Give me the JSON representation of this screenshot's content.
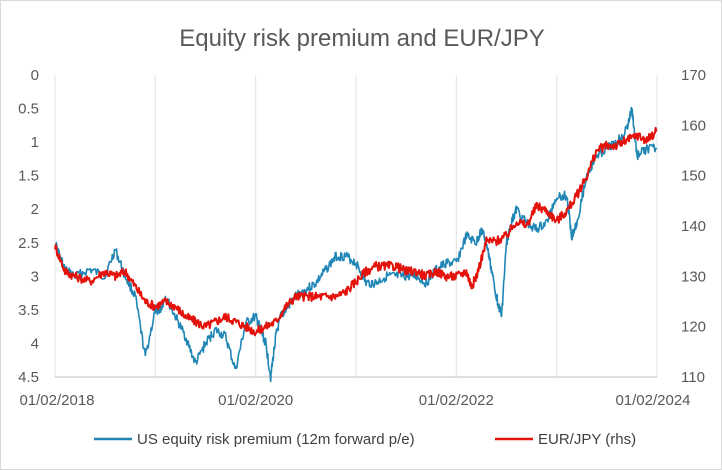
{
  "chart_data": {
    "type": "line",
    "title": "Equity risk premium and EUR/JPY",
    "xlabel": "",
    "ylabel_left": "",
    "ylabel_right": "",
    "x_ticks": [
      "01/02/2018",
      "01/02/2020",
      "01/02/2022",
      "01/02/2024"
    ],
    "y_left": {
      "min": 0,
      "max": 4.5,
      "inverted": true,
      "ticks": [
        "0",
        "0.5",
        "1",
        "1.5",
        "2",
        "2.5",
        "3",
        "3.5",
        "4",
        "4.5"
      ]
    },
    "y_right": {
      "min": 110,
      "max": 170,
      "ticks": [
        "110",
        "120",
        "130",
        "140",
        "150",
        "160",
        "170"
      ]
    },
    "grid": "vertical",
    "legend_position": "bottom",
    "series": [
      {
        "name": "US equity risk premium (12m forward p/e)",
        "axis": "left",
        "color": "#1f86b5",
        "x": [
          2018.0,
          2018.1,
          2018.2,
          2018.35,
          2018.5,
          2018.6,
          2018.7,
          2018.8,
          2018.9,
          2019.0,
          2019.05,
          2019.1,
          2019.2,
          2019.3,
          2019.4,
          2019.5,
          2019.6,
          2019.7,
          2019.8,
          2019.9,
          2020.0,
          2020.05,
          2020.1,
          2020.15,
          2020.2,
          2020.25,
          2020.3,
          2020.4,
          2020.5,
          2020.6,
          2020.7,
          2020.8,
          2020.9,
          2021.0,
          2021.1,
          2021.2,
          2021.3,
          2021.4,
          2021.5,
          2021.6,
          2021.7,
          2021.8,
          2021.9,
          2022.0,
          2022.1,
          2022.2,
          2022.25,
          2022.3,
          2022.35,
          2022.4,
          2022.45,
          2022.5,
          2022.55,
          2022.6,
          2022.7,
          2022.8,
          2022.9,
          2023.0,
          2023.1,
          2023.15,
          2023.2,
          2023.3,
          2023.4,
          2023.5,
          2023.6,
          2023.7,
          2023.75,
          2023.8,
          2023.9,
          2024.0
        ],
        "values": [
          2.5,
          2.9,
          3.0,
          2.9,
          3.0,
          2.6,
          3.0,
          3.3,
          4.2,
          3.5,
          3.5,
          3.3,
          3.6,
          3.9,
          4.3,
          4.0,
          3.8,
          3.9,
          4.4,
          3.7,
          3.6,
          3.8,
          4.0,
          4.5,
          3.9,
          3.6,
          3.5,
          3.3,
          3.2,
          3.1,
          2.9,
          2.7,
          2.7,
          2.8,
          3.1,
          3.1,
          3.0,
          3.0,
          3.0,
          3.0,
          3.1,
          2.9,
          2.8,
          2.8,
          2.4,
          2.5,
          2.3,
          2.5,
          2.9,
          3.3,
          3.6,
          2.5,
          2.2,
          2.0,
          2.2,
          2.3,
          2.2,
          1.8,
          1.8,
          2.4,
          2.2,
          1.5,
          1.2,
          1.1,
          1.0,
          0.8,
          0.5,
          1.2,
          1.1,
          1.1
        ]
      },
      {
        "name": "EUR/JPY (rhs)",
        "axis": "right",
        "color": "#e3120b",
        "x": [
          2018.0,
          2018.1,
          2018.2,
          2018.35,
          2018.5,
          2018.6,
          2018.7,
          2018.8,
          2018.9,
          2019.0,
          2019.1,
          2019.2,
          2019.3,
          2019.4,
          2019.5,
          2019.6,
          2019.7,
          2019.8,
          2019.9,
          2020.0,
          2020.1,
          2020.2,
          2020.3,
          2020.4,
          2020.5,
          2020.6,
          2020.7,
          2020.8,
          2020.9,
          2021.0,
          2021.1,
          2021.2,
          2021.3,
          2021.4,
          2021.5,
          2021.6,
          2021.7,
          2021.8,
          2021.9,
          2022.0,
          2022.1,
          2022.15,
          2022.2,
          2022.3,
          2022.4,
          2022.5,
          2022.6,
          2022.7,
          2022.8,
          2022.9,
          2023.0,
          2023.1,
          2023.2,
          2023.3,
          2023.4,
          2023.5,
          2023.6,
          2023.7,
          2023.8,
          2023.9,
          2024.0
        ],
        "values": [
          136,
          131,
          130,
          129,
          131,
          130,
          131,
          128,
          125,
          124,
          125,
          124,
          122,
          121,
          120,
          121,
          122,
          121,
          120,
          119,
          120,
          121,
          124,
          126,
          126,
          126,
          126,
          126,
          127,
          129,
          131,
          132,
          132,
          132,
          131,
          131,
          130,
          131,
          130,
          130,
          131,
          128,
          130,
          137,
          137,
          138,
          141,
          140,
          144,
          143,
          141,
          143,
          146,
          150,
          155,
          156,
          156,
          157,
          158,
          157,
          159
        ]
      }
    ]
  }
}
